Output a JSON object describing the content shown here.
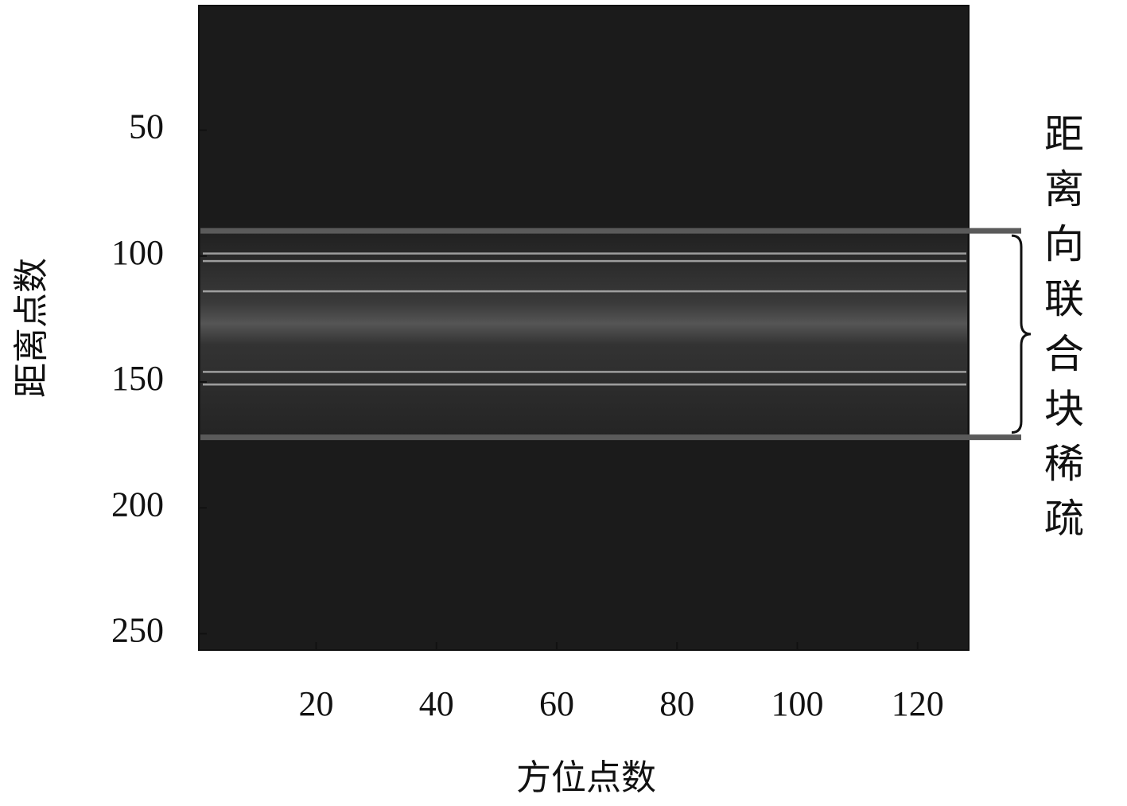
{
  "chart_data": {
    "type": "image",
    "xlabel": "方位点数",
    "ylabel": "距离点数",
    "annotation": "距离向联合块稀疏",
    "xlim": [
      0.5,
      128.5
    ],
    "ylim": [
      0.5,
      256.5
    ],
    "y_reversed": true,
    "xticks": [
      20,
      40,
      60,
      80,
      100,
      120
    ],
    "yticks": [
      50,
      100,
      150,
      200,
      250
    ],
    "block_rows": [
      90,
      172
    ],
    "bright_rows": [
      99,
      102,
      114,
      146,
      151
    ],
    "colormap": "gray"
  }
}
